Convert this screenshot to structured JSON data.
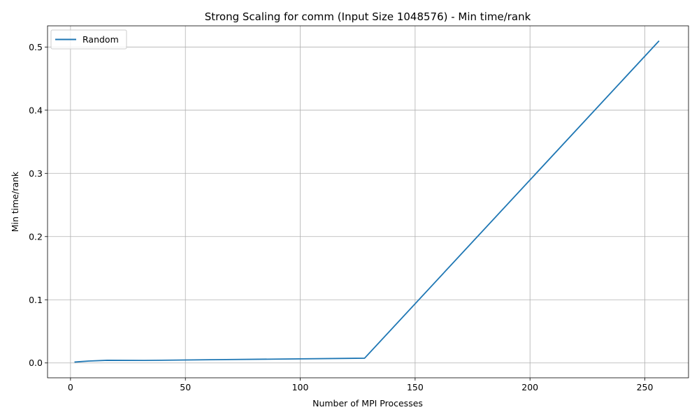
{
  "chart_data": {
    "type": "line",
    "title": "Strong Scaling for comm (Input Size 1048576) - Min time/rank",
    "xlabel": "Number of MPI Processes",
    "ylabel": "Min time/rank",
    "xlim": [
      -10,
      269
    ],
    "ylim": [
      -0.0235,
      0.5335
    ],
    "xticks": [
      0,
      50,
      100,
      150,
      200,
      250
    ],
    "xtick_labels": [
      "0",
      "50",
      "100",
      "150",
      "200",
      "250"
    ],
    "yticks": [
      0.0,
      0.1,
      0.2,
      0.3,
      0.4,
      0.5
    ],
    "ytick_labels": [
      "0.0",
      "0.1",
      "0.2",
      "0.3",
      "0.4",
      "0.5"
    ],
    "grid": true,
    "legend_position": "upper-left",
    "series": [
      {
        "name": "Random",
        "color": "#1f77b4",
        "x": [
          2,
          4,
          8,
          16,
          32,
          64,
          128,
          256
        ],
        "y": [
          0.0015,
          0.002,
          0.003,
          0.0042,
          0.004,
          0.0052,
          0.0075,
          0.509
        ]
      }
    ]
  }
}
